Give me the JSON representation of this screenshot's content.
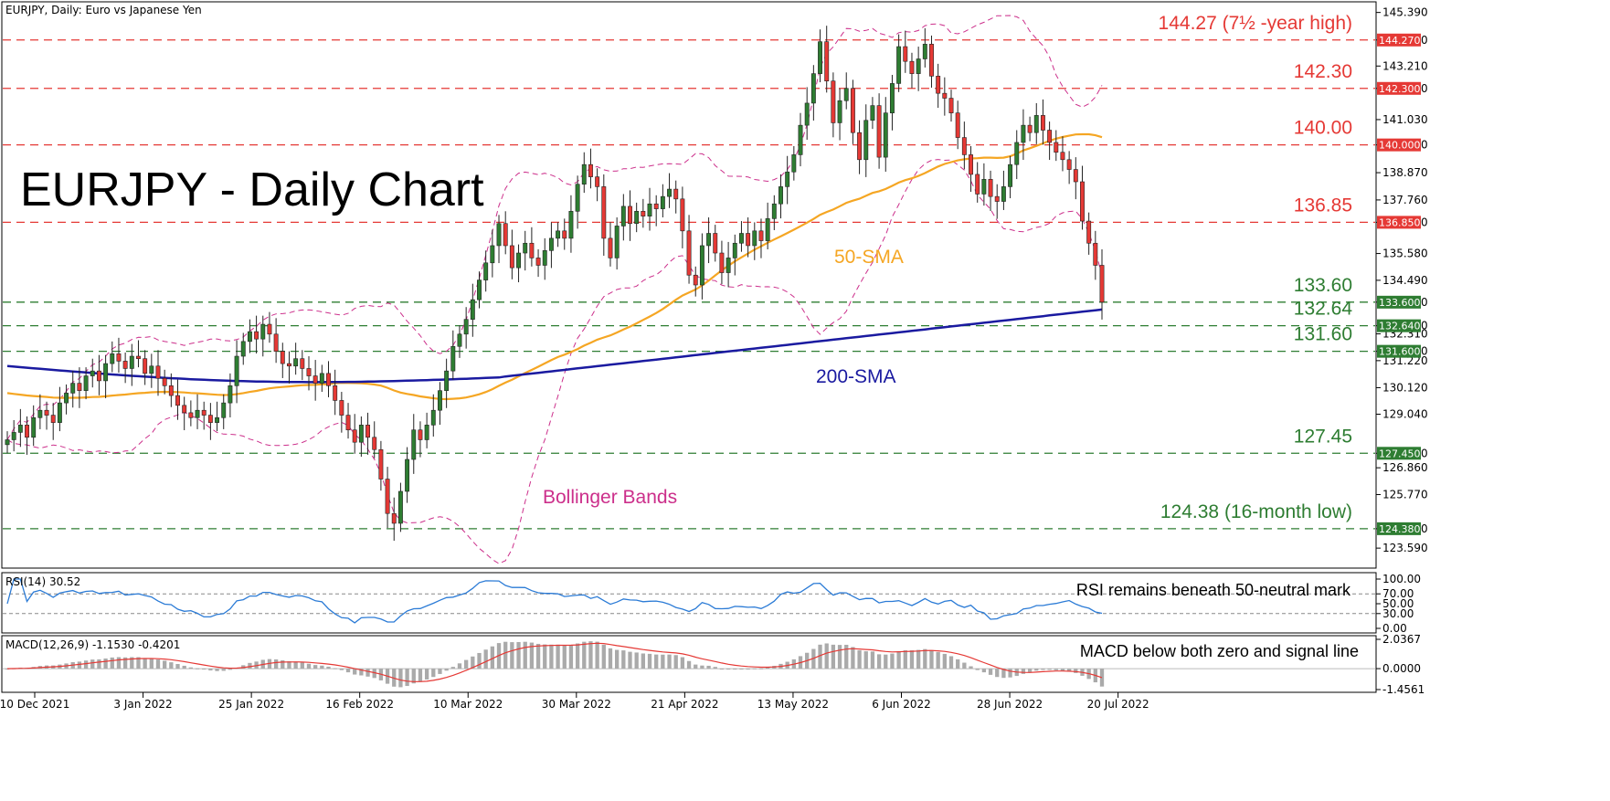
{
  "chart_data": {
    "type": "candlestick",
    "symbol_label": "EURJPY, Daily:  Euro vs Japanese Yen",
    "title": "EURJPY - Daily Chart",
    "colors": {
      "up": "#2e7d32",
      "down": "#e53935",
      "sma50": "#f5a623",
      "sma200": "#1a1aa0",
      "bollinger": "#cc2f8b",
      "resistance": "#e53935",
      "support": "#2e7d32",
      "rsi": "#2b7bd6",
      "macd_hist": "#aaaaaa",
      "macd_signal": "#e53935"
    },
    "price_axis": {
      "min": 123.0,
      "max": 145.6,
      "ticks": [
        "145.390",
        "144.270",
        "143.210",
        "142.300",
        "141.030",
        "140.000",
        "138.870",
        "137.760",
        "136.850",
        "135.580",
        "134.490",
        "133.600",
        "132.640",
        "132.310",
        "131.600",
        "131.220",
        "130.120",
        "129.040",
        "127.450",
        "126.860",
        "125.770",
        "124.380",
        "123.590"
      ]
    },
    "levels": [
      {
        "value": 144.27,
        "label": "144.27 (7½ -year high)",
        "tag": "144.270",
        "kind": "resistance"
      },
      {
        "value": 142.3,
        "label": "142.30",
        "tag": "142.300",
        "kind": "resistance"
      },
      {
        "value": 140.0,
        "label": "140.00",
        "tag": "140.000",
        "kind": "resistance"
      },
      {
        "value": 136.85,
        "label": "136.85",
        "tag": "136.850",
        "kind": "resistance"
      },
      {
        "value": 133.6,
        "label": "133.60",
        "tag": "133.600",
        "kind": "support"
      },
      {
        "value": 132.64,
        "label": "132.64",
        "tag": "132.640",
        "kind": "support"
      },
      {
        "value": 131.6,
        "label": "131.60",
        "tag": "131.600",
        "kind": "support"
      },
      {
        "value": 127.45,
        "label": "127.45",
        "tag": "127.450",
        "kind": "support"
      },
      {
        "value": 124.38,
        "label": "124.38 (16-month low)",
        "tag": "124.380",
        "kind": "support"
      }
    ],
    "annotations": {
      "sma50": "50-SMA",
      "sma200": "200-SMA",
      "bollinger": "Bollinger Bands"
    },
    "x_labels": [
      "10 Dec 2021",
      "3 Jan 2022",
      "25 Jan 2022",
      "16 Feb 2022",
      "10 Mar 2022",
      "30 Mar 2022",
      "21 Apr 2022",
      "13 May 2022",
      "6 Jun 2022",
      "28 Jun 2022",
      "20 Jul 2022"
    ],
    "closes": [
      128.0,
      128.3,
      128.6,
      128.1,
      128.9,
      129.2,
      129.0,
      128.7,
      129.5,
      129.9,
      130.3,
      130.0,
      130.6,
      130.8,
      130.4,
      131.1,
      131.5,
      131.2,
      130.9,
      131.4,
      131.3,
      130.7,
      131.0,
      130.5,
      130.2,
      129.8,
      129.4,
      129.1,
      128.9,
      129.2,
      129.0,
      128.7,
      128.9,
      129.5,
      130.2,
      131.4,
      132.0,
      132.4,
      132.1,
      132.7,
      132.3,
      131.6,
      131.1,
      131.0,
      131.3,
      130.9,
      130.6,
      130.3,
      130.7,
      130.2,
      129.6,
      129.0,
      128.4,
      127.9,
      128.6,
      128.1,
      127.6,
      126.4,
      125.0,
      124.6,
      125.9,
      127.2,
      128.4,
      128.0,
      128.6,
      129.2,
      130.0,
      130.8,
      131.8,
      132.3,
      132.9,
      133.7,
      134.5,
      135.2,
      135.9,
      136.8,
      135.9,
      135.0,
      135.6,
      136.0,
      135.4,
      135.1,
      135.7,
      136.2,
      136.5,
      136.2,
      137.3,
      138.4,
      139.2,
      138.7,
      138.3,
      136.2,
      135.4,
      136.7,
      137.5,
      136.8,
      137.3,
      137.1,
      137.6,
      137.4,
      137.9,
      138.2,
      137.8,
      136.5,
      134.7,
      134.3,
      135.9,
      136.4,
      135.6,
      134.8,
      135.4,
      136.0,
      136.4,
      135.9,
      136.5,
      136.1,
      137.0,
      137.6,
      138.3,
      138.9,
      139.6,
      140.8,
      141.7,
      142.9,
      144.2,
      142.6,
      140.9,
      141.8,
      142.3,
      140.5,
      139.4,
      141.0,
      141.6,
      139.5,
      141.3,
      142.5,
      144.0,
      143.4,
      142.9,
      143.5,
      144.1,
      142.8,
      142.1,
      141.9,
      141.3,
      140.3,
      139.6,
      138.8,
      138.0,
      138.6,
      137.9,
      137.7,
      138.3,
      139.2,
      140.1,
      140.8,
      140.5,
      141.2,
      140.6,
      140.1,
      139.7,
      139.4,
      139.0,
      138.5,
      136.9,
      136.0,
      135.1,
      133.6
    ],
    "rsi": {
      "label": "RSI(14) 30.52",
      "ticks": [
        "100.00",
        "70.00",
        "50.00",
        "30.00",
        "0.00"
      ],
      "note": "RSI remains beneath 50-neutral mark"
    },
    "macd": {
      "label": "MACD(12,26,9) -1.1530 -0.4201",
      "ticks": [
        "2.0367",
        "0.0000",
        "-1.4561"
      ],
      "note": "MACD below both zero and signal line"
    }
  }
}
